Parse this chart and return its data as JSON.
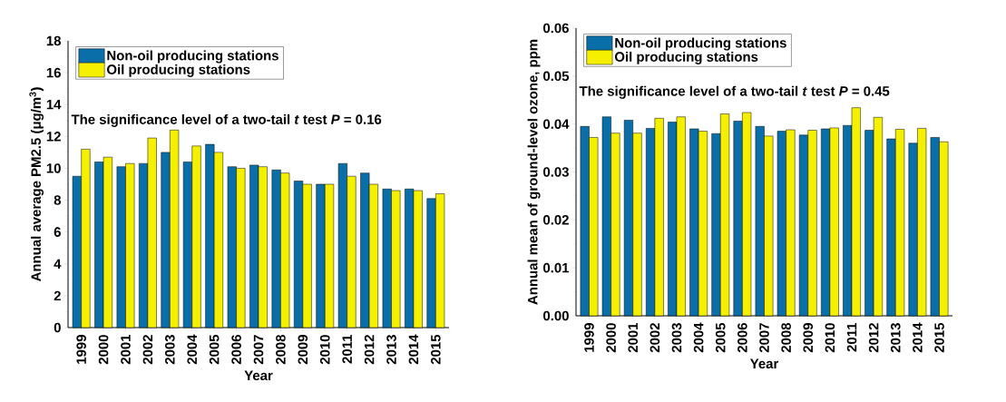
{
  "chart_data": [
    {
      "type": "bar",
      "xlabel": "Year",
      "ylabel": "Annual average PM2.5 (μg/m$^{3}$)",
      "categories": [
        "1999",
        "2000",
        "2001",
        "2002",
        "2003",
        "2004",
        "2005",
        "2006",
        "2007",
        "2008",
        "2009",
        "2010",
        "2011",
        "2012",
        "2013",
        "2014",
        "2015"
      ],
      "series": [
        {
          "name": "Non-oil producing stations",
          "color": "#0a6fa8",
          "values": [
            9.5,
            10.4,
            10.1,
            10.3,
            11.0,
            10.4,
            11.5,
            10.1,
            10.2,
            9.9,
            9.2,
            9.0,
            10.3,
            9.7,
            8.7,
            8.7,
            8.1
          ]
        },
        {
          "name": "Oil producing stations",
          "color": "#f5f000",
          "values": [
            11.2,
            10.7,
            10.3,
            11.9,
            12.4,
            11.4,
            11.0,
            10.0,
            10.1,
            9.7,
            9.0,
            9.0,
            9.5,
            9.0,
            8.6,
            8.6,
            8.4
          ]
        }
      ],
      "ylim": [
        0,
        18
      ],
      "yticks": [
        0,
        2,
        4,
        6,
        8,
        10,
        12,
        14,
        16,
        18
      ],
      "legend": "top left",
      "annotations": [
        "The significance level of a two-tail *t* test *P* = 0.16"
      ]
    },
    {
      "type": "bar",
      "xlabel": "Year",
      "ylabel": "Annual mean of ground-level ozone, ppm",
      "categories": [
        "1999",
        "2000",
        "2001",
        "2002",
        "2003",
        "2004",
        "2005",
        "2006",
        "2007",
        "2008",
        "2009",
        "2010",
        "2011",
        "2012",
        "2013",
        "2014",
        "2015"
      ],
      "series": [
        {
          "name": "Non-oil producing stations",
          "color": "#0a6fa8",
          "values": [
            0.0395,
            0.0415,
            0.0408,
            0.0391,
            0.0404,
            0.039,
            0.038,
            0.0406,
            0.0395,
            0.0385,
            0.0377,
            0.039,
            0.0397,
            0.0387,
            0.0369,
            0.036,
            0.0372
          ]
        },
        {
          "name": "Oil producing stations",
          "color": "#f5f000",
          "values": [
            0.0372,
            0.0381,
            0.0381,
            0.0412,
            0.0415,
            0.0385,
            0.0421,
            0.0424,
            0.0375,
            0.0388,
            0.0387,
            0.0392,
            0.0434,
            0.0414,
            0.0389,
            0.0391,
            0.0363
          ]
        }
      ],
      "ylim": [
        0,
        0.06
      ],
      "yticks": [
        {
          "value": 0,
          "label": "0.00"
        },
        0.01,
        0.02,
        0.03,
        0.04,
        0.05,
        0.06
      ],
      "legend": "top left",
      "annotations": [
        "The significance level of a two-tail *t* test *P* = 0.45"
      ]
    }
  ]
}
